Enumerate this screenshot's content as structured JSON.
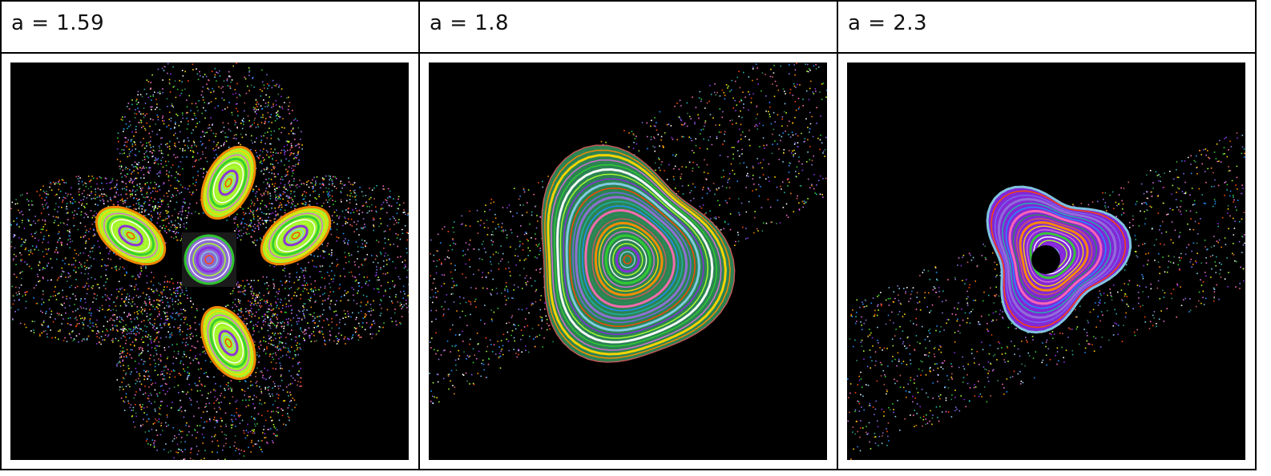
{
  "panels": [
    {
      "label": "a = 1.59",
      "image": "henon-orbit-plot"
    },
    {
      "label": "a = 1.8",
      "image": "henon-orbit-plot"
    },
    {
      "label": "a = 2.3",
      "image": "henon-orbit-plot"
    }
  ],
  "colors": {
    "background": "#000000",
    "palette": [
      "#ffffff",
      "#7b68ee",
      "#2e8b57",
      "#32cd32",
      "#ff4500",
      "#ff69b4",
      "#da70d6",
      "#87ceeb",
      "#1e90ff",
      "#ffd700",
      "#8a2be2",
      "#20b2aa",
      "#ff8c00",
      "#adff2f",
      "#9370db",
      "#cd5c5c"
    ]
  }
}
